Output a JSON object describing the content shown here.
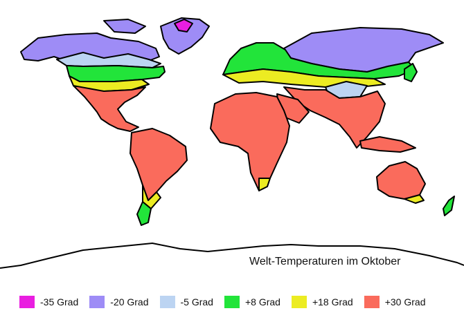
{
  "title": "Welt-Temperaturen im Oktober",
  "legend": [
    {
      "label": "-35 Grad",
      "color": "#e91ee0"
    },
    {
      "label": "-20 Grad",
      "color": "#9e8cf6"
    },
    {
      "label": "-5 Grad",
      "color": "#bcd4f2"
    },
    {
      "label": "+8 Grad",
      "color": "#22e43a"
    },
    {
      "label": "+18 Grad",
      "color": "#ecec22"
    },
    {
      "label": "+30 Grad",
      "color": "#fa6b5c"
    }
  ],
  "colors": {
    "outline": "#000000",
    "land_unshaded": "#ffffff"
  }
}
